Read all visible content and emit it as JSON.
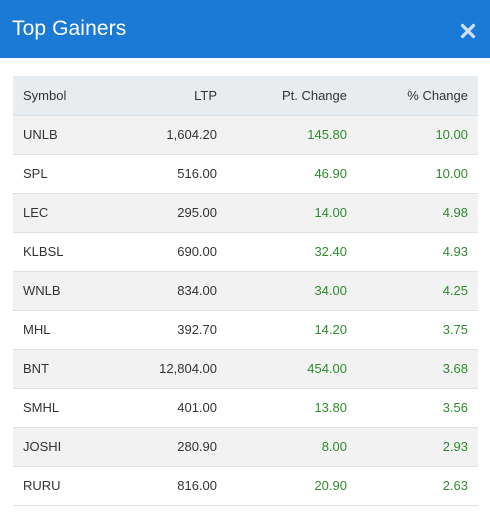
{
  "modal": {
    "title": "Top Gainers",
    "close_icon": "close-icon"
  },
  "colors": {
    "header_bg": "#1a7ad6",
    "positive": "#2e8b2e",
    "table_header_bg": "#e9ecef",
    "row_alt_bg": "#f2f2f2"
  },
  "table": {
    "headers": {
      "symbol": "Symbol",
      "ltp": "LTP",
      "pt_change": "Pt. Change",
      "pct_change": "% Change"
    },
    "rows": [
      {
        "symbol": "UNLB",
        "ltp": "1,604.20",
        "pt_change": "145.80",
        "pct_change": "10.00"
      },
      {
        "symbol": "SPL",
        "ltp": "516.00",
        "pt_change": "46.90",
        "pct_change": "10.00"
      },
      {
        "symbol": "LEC",
        "ltp": "295.00",
        "pt_change": "14.00",
        "pct_change": "4.98"
      },
      {
        "symbol": "KLBSL",
        "ltp": "690.00",
        "pt_change": "32.40",
        "pct_change": "4.93"
      },
      {
        "symbol": "WNLB",
        "ltp": "834.00",
        "pt_change": "34.00",
        "pct_change": "4.25"
      },
      {
        "symbol": "MHL",
        "ltp": "392.70",
        "pt_change": "14.20",
        "pct_change": "3.75"
      },
      {
        "symbol": "BNT",
        "ltp": "12,804.00",
        "pt_change": "454.00",
        "pct_change": "3.68"
      },
      {
        "symbol": "SMHL",
        "ltp": "401.00",
        "pt_change": "13.80",
        "pct_change": "3.56"
      },
      {
        "symbol": "JOSHI",
        "ltp": "280.90",
        "pt_change": "8.00",
        "pct_change": "2.93"
      },
      {
        "symbol": "RURU",
        "ltp": "816.00",
        "pt_change": "20.90",
        "pct_change": "2.63"
      }
    ]
  }
}
